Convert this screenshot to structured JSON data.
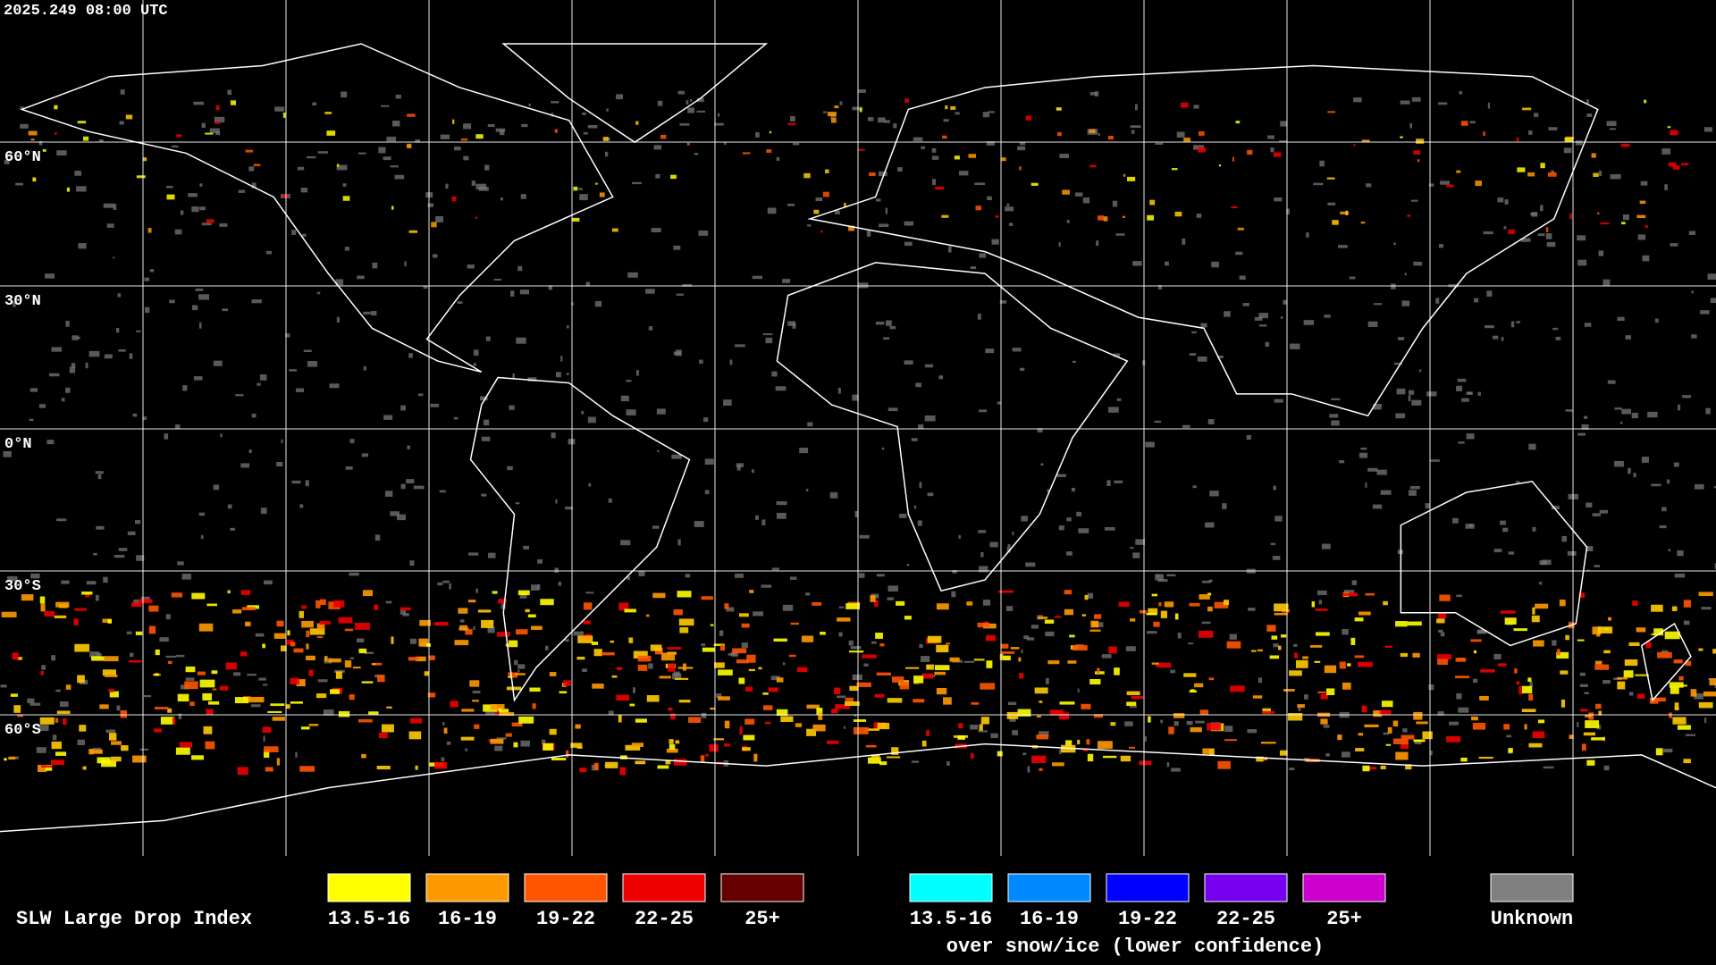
{
  "timestamp": "2025.249 08:00 UTC",
  "latitude_labels": [
    "60°N",
    "30°N",
    "0°N",
    "30°S",
    "60°S"
  ],
  "legend": {
    "title": "SLW Large Drop Index",
    "items": [
      {
        "label": "13.5-16",
        "color": "#ffff00"
      },
      {
        "label": "16-19",
        "color": "#ff9900"
      },
      {
        "label": "19-22",
        "color": "#ff5500"
      },
      {
        "label": "22-25",
        "color": "#ee0000"
      },
      {
        "label": "25+",
        "color": "#660000"
      }
    ],
    "snow_items": [
      {
        "label": "13.5-16",
        "color": "#00ffff"
      },
      {
        "label": "16-19",
        "color": "#0088ff"
      },
      {
        "label": "19-22",
        "color": "#0000ff"
      },
      {
        "label": "22-25",
        "color": "#7700ee"
      },
      {
        "label": "25+",
        "color": "#cc00cc"
      }
    ],
    "snow_caption": "over snow/ice (lower confidence)",
    "unknown": {
      "label": "Unknown",
      "color": "#808080"
    }
  }
}
